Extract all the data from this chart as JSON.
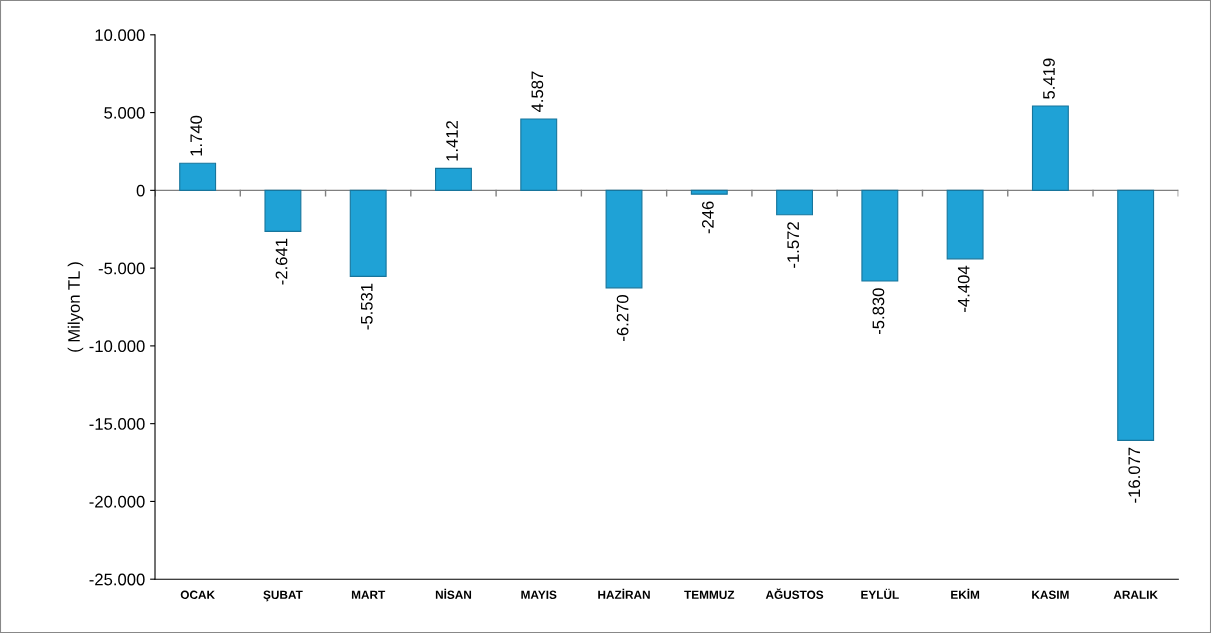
{
  "chart_data": {
    "type": "bar",
    "ylabel": "( Milyon TL )",
    "categories": [
      "OCAK",
      "ŞUBAT",
      "MART",
      "NİSAN",
      "MAYIS",
      "HAZİRAN",
      "TEMMUZ",
      "AĞUSTOS",
      "EYLÜL",
      "EKİM",
      "KASIM",
      "ARALIK"
    ],
    "values": [
      1740,
      -2641,
      -5531,
      1412,
      4587,
      -6270,
      -246,
      -1572,
      -5830,
      -4404,
      5419,
      -16077
    ],
    "value_labels": [
      "1.740",
      "-2.641",
      "-5.531",
      "1.412",
      "4.587",
      "-6.270",
      "-246",
      "-1.572",
      "-5.830",
      "-4.404",
      "5.419",
      "-16.077"
    ],
    "color": "#1fa2d6",
    "ylim": [
      -25000,
      10000
    ],
    "yticks": [
      {
        "value": -25000,
        "label": "-25.000"
      },
      {
        "value": -20000,
        "label": "-20.000"
      },
      {
        "value": -15000,
        "label": "-15.000"
      },
      {
        "value": -10000,
        "label": "-10.000"
      },
      {
        "value": -5000,
        "label": "-5.000"
      },
      0,
      {
        "value": 5000,
        "label": "5.000"
      },
      {
        "value": 10000,
        "label": "10.000"
      }
    ],
    "ref_lines": [
      {
        "axis": "y",
        "value": 0,
        "color": "#808080"
      }
    ],
    "grid": false,
    "legend": false
  }
}
